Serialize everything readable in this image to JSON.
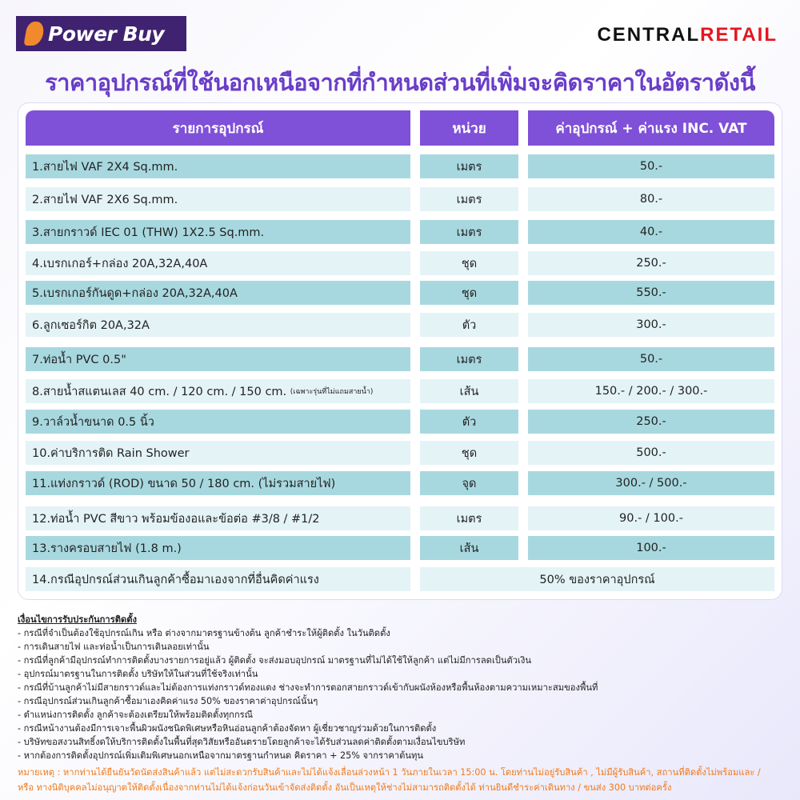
{
  "brand": {
    "left_logo": "Power Buy",
    "right_logo_a": "CENTRAL",
    "right_logo_b": "RETAIL"
  },
  "title": "ราคาอุปกรณ์ที่ใช้นอกเหนือจากที่กำหนดส่วนที่เพิ่มจะคิดราคาในอัตราดังนี้",
  "table": {
    "headers": [
      "รายการอุปกรณ์",
      "หน่วย",
      "ค่าอุปกรณ์ + ค่าแรง INC. VAT"
    ],
    "rows": [
      {
        "item": "1.สายไฟ VAF 2X4 Sq.mm.",
        "unit": "เมตร",
        "price": "50.-"
      },
      {
        "item": "2.สายไฟ VAF 2X6 Sq.mm.",
        "unit": "เมตร",
        "price": "80.-"
      },
      {
        "item": "3.สายกราวด์ IEC 01 (THW) 1X2.5 Sq.mm.",
        "unit": "เมตร",
        "price": "40.-"
      },
      {
        "item": "4.เบรกเกอร์+กล่อง 20A,32A,40A",
        "unit": "ชุด",
        "price": "250.-"
      },
      {
        "item": "5.เบรกเกอร์กันดูด+กล่อง 20A,32A,40A",
        "unit": "ชุด",
        "price": "550.-"
      },
      {
        "item": "6.ลูกเซอร์กิต 20A,32A",
        "unit": "ตัว",
        "price": "300.-"
      },
      {
        "item": "7.ท่อน้ำ PVC 0.5\"",
        "unit": "เมตร",
        "price": "50.-"
      },
      {
        "item": "8.สายน้ำสแตนเลส 40 cm. / 120 cm. / 150 cm.",
        "note": "(เฉพาะรุ่นที่ไม่แถมสายน้ำ)",
        "unit": "เส้น",
        "price": "150.- / 200.- / 300.-"
      },
      {
        "item": "9.วาล์วน้ำขนาด 0.5 นิ้ว",
        "unit": "ตัว",
        "price": "250.-"
      },
      {
        "item": "10.ค่าบริการติด Rain Shower",
        "unit": "ชุด",
        "price": "500.-"
      },
      {
        "item": "11.แท่งกราวด์ (ROD) ขนาด 50 / 180 cm. (ไม่รวมสายไฟ)",
        "unit": "จุด",
        "price": "300.- / 500.-"
      },
      {
        "item": "12.ท่อน้ำ PVC สีขาว พร้อมข้องอและข้อต่อ #3/8 / #1/2",
        "unit": "เมตร",
        "price": "90.- / 100.-"
      },
      {
        "item": "13.รางครอบสายไฟ (1.8 m.)",
        "unit": "เส้น",
        "price": "100.-"
      },
      {
        "item": "14.กรณีอุปกรณ์ส่วนเกินลูกค้าซื้อมาเองจากที่อื่นคิดค่าแรง",
        "merged": "50% ของราคาอุปกรณ์"
      }
    ]
  },
  "conditions": {
    "title": "เงื่อนไขการรับประกันการติดตั้ง",
    "items": [
      "- กรณีที่จำเป็นต้องใช้อุปกรณ์เกิน หรือ ต่างจากมาตรฐานข้างต้น ลูกค้าชำระให้ผู้ติดตั้ง ในวันติดตั้ง",
      "- การเดินสายไฟ และท่อน้ำเป็นการเดินลอยเท่านั้น",
      "- กรณีที่ลูกค้ามีอุปกรณ์ทำการติดตั้งบางรายการอยู่แล้ว ผู้ติดตั้ง จะส่งมอบอุปกรณ์ มาตรฐานที่ไม่ได้ใช้ให้ลูกค้า แต่ไม่มีการลดเป็นตัวเงิน",
      "- อุปกรณ์มาตรฐานในการติดตั้ง บริษัทให้ในส่วนที่ใช้จริงเท่านั้น",
      "- กรณีที่บ้านลูกค้าไม่มีสายกราวด์และไม่ต้องการแท่งกราวด์ทองแดง ช่างจะทำการตอกสายกราวด์เข้ากับผนังห้องหรือพื้นห้องตามความเหมาะสมของพื้นที่",
      "- กรณีอุปกรณ์ส่วนเกินลูกค้าซื้อมาเองคิดค่าแรง 50% ของราคาค่าอุปกรณ์นั้นๆ",
      "- ตำแหน่งการติดตั้ง ลูกค้าจะต้องเตรียมให้พร้อมติดตั้งทุกกรณี",
      "- กรณีหน้างานต้องมีการเจาะพื้นผิวผนังชนิดพิเศษหรือหินอ่อนลูกค้าต้องจัดหา ผู้เชี่ยวชาญร่วมด้วยในการติดตั้ง",
      "- บริษัทขอสงวนสิทธิ์งดให้บริการติดตั้งในพื้นที่สุดวิสัยหรืออันตรายโดยลูกค้าจะได้รับส่วนลดค่าติดตั้งตามเงื่อนไขบริษัท",
      "- หากต้องการติดตั้งอุปกรณ์เพิ่มเติมพิเศษนอกเหนือจากมาตรฐานกำหนด คิดราคา + 25% จากราคาต้นทุน"
    ]
  },
  "remark": [
    "หมายเหตุ : หากท่านได้ยืนยันวัดนัดส่งสินค้าแล้ว แต่ไม่สะดวกรับสินค้าและไม่ได้แจ้งเลื่อนล่วงหน้า 1 วันภายในเวลา 15:00 น. โดยท่านไม่อยู่รับสินค้า , ไม่มีผู้รับสินค้า, สถานที่ติดตั้งไม่พร้อมและ /",
    "หรือ ทางนิติบุคคลไม่อนุญาตให้ติดตั้งเนื่องจากท่านไม่ได้แจ้งก่อนวันเข้าจัดส่งติดตั้ง อันเป็นเหตุให้ช่างไม่สามารถติดตั้งได้ ท่านยินดีชำระค่าเดินทาง / ขนส่ง 300 บาทต่อครั้ง"
  ],
  "colors": {
    "header": "#7f50d8",
    "title": "#6a3dc8",
    "row_teal": "#a8d8df",
    "row_light": "#e4f3f6",
    "remark": "#f07a1a",
    "retail_red": "#e4161e"
  }
}
